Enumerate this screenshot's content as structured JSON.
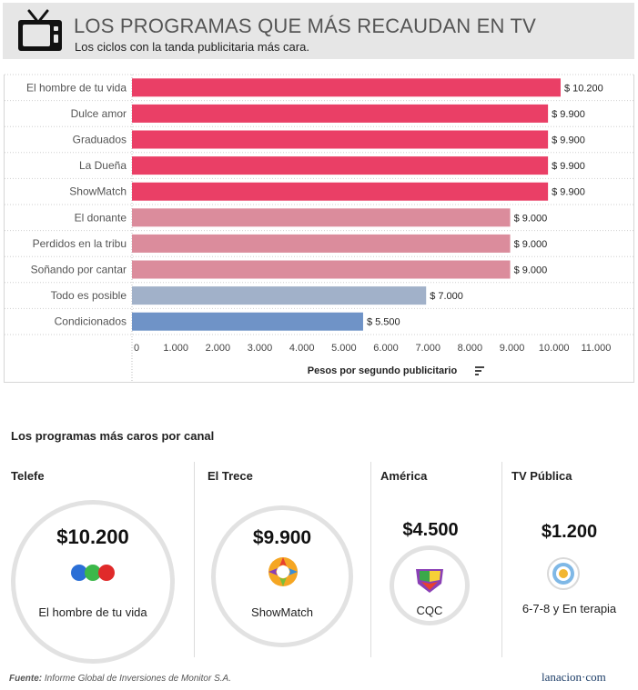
{
  "header": {
    "title": "LOS PROGRAMAS QUE MÁS RECAUDAN EN TV",
    "subtitle": "Los ciclos con la tanda publicitaria más cara.",
    "icon": "tv-icon"
  },
  "chart_data": {
    "type": "bar",
    "orientation": "horizontal",
    "categories": [
      "El hombre de tu vida",
      "Dulce amor",
      "Graduados",
      "La Dueña",
      "ShowMatch",
      "El donante",
      "Perdidos en la tribu",
      "Soñando por cantar",
      "Todo es posible",
      "Condicionados"
    ],
    "values": [
      10200,
      9900,
      9900,
      9900,
      9900,
      9000,
      9000,
      9000,
      7000,
      5500
    ],
    "value_labels": [
      "$ 10.200",
      "$ 9.900",
      "$ 9.900",
      "$ 9.900",
      "$ 9.900",
      "$ 9.000",
      "$ 9.000",
      "$ 9.000",
      "$ 7.000",
      "$ 5.500"
    ],
    "colors": [
      "#ea3f66",
      "#ea3f66",
      "#ea3f66",
      "#ea3f66",
      "#ea3f66",
      "#db8c9c",
      "#db8c9c",
      "#db8c9c",
      "#a1b1c9",
      "#6f93c7"
    ],
    "xlim": [
      0,
      11500
    ],
    "ticks": [
      0,
      1000,
      2000,
      3000,
      4000,
      5000,
      6000,
      7000,
      8000,
      9000,
      10000,
      11000
    ],
    "tick_labels": [
      "0",
      "1.000",
      "2.000",
      "3.000",
      "4.000",
      "5.000",
      "6.000",
      "7.000",
      "8.000",
      "9.000",
      "10.000",
      "11.000"
    ],
    "xlabel": "Pesos por segundo publicitario",
    "ylabel": "",
    "grid": true
  },
  "channels_section": {
    "title": "Los programas más caros por canal",
    "channels": [
      {
        "name": "Telefe",
        "amount": "$10.200",
        "program": "El hombre de tu vida",
        "logo": "telefe-logo",
        "logo_colors": [
          "#2b6fd6",
          "#3cb84a",
          "#e02a2a"
        ]
      },
      {
        "name": "El Trece",
        "amount": "$9.900",
        "program": "ShowMatch",
        "logo": "el-trece-logo",
        "logo_colors": [
          "#e8402f",
          "#f5a623",
          "#f7d038",
          "#7bbf3a",
          "#3a8ed8",
          "#8a3fb5"
        ]
      },
      {
        "name": "América",
        "amount": "$4.500",
        "program": "CQC",
        "logo": "america-logo",
        "logo_colors": [
          "#e8402f",
          "#f7d038",
          "#3aa84a",
          "#8a3fb5"
        ]
      },
      {
        "name": "TV Pública",
        "amount": "$1.200",
        "program": "6-7-8 y En terapia",
        "logo": "tv-publica-logo",
        "logo_colors": [
          "#7fb8e6",
          "#f2b632"
        ]
      }
    ]
  },
  "footer": {
    "source_label": "Fuente:",
    "source_text": " Informe Global de Inversiones de Monitor S.A.",
    "brand": "lanacion·com"
  }
}
